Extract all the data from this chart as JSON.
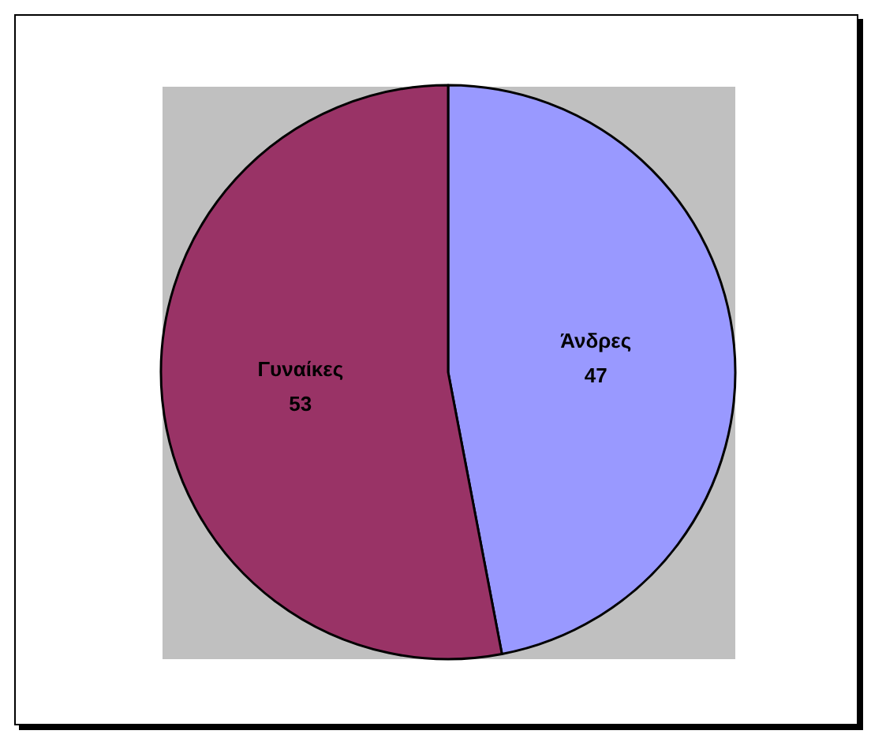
{
  "chart_data": {
    "type": "pie",
    "categories": [
      "Άνδρες",
      "Γυναίκες"
    ],
    "values": [
      47,
      53
    ],
    "colors": [
      "#9999ff",
      "#993366"
    ],
    "data_labels": true,
    "legend": false
  }
}
